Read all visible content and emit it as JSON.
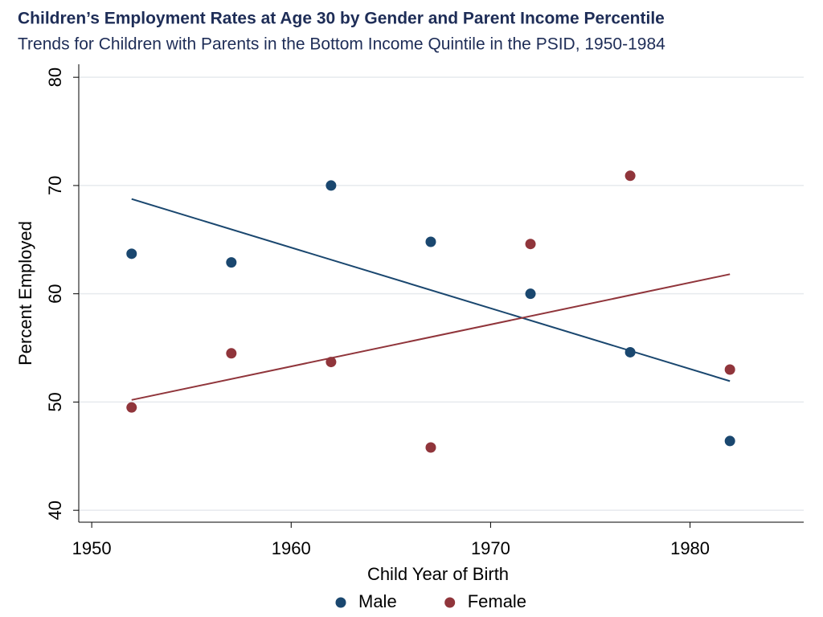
{
  "chart_data": {
    "type": "scatter",
    "title": "Children’s Employment Rates at Age 30 by Gender and Parent Income Percentile",
    "subtitle": "Trends for Children with Parents in the Bottom Income Quintile in the PSID, 1950-1984",
    "x_label": "Child Year of Birth",
    "y_label": "Percent Employed",
    "x": [
      1952,
      1957,
      1962,
      1967,
      1972,
      1977,
      1982
    ],
    "series": [
      {
        "name": "Male",
        "color": "#1a476f",
        "values": [
          63.7,
          62.9,
          70.0,
          64.8,
          60.0,
          54.6,
          46.4
        ]
      },
      {
        "name": "Female",
        "color": "#90353b",
        "values": [
          49.5,
          54.5,
          53.7,
          45.8,
          64.6,
          70.9,
          53.0
        ]
      }
    ],
    "fit": "linear",
    "xlim": [
      1949.35,
      1985.7
    ],
    "xticks": [
      1950,
      1960,
      1970,
      1980
    ],
    "ylim": [
      38.9,
      81.2
    ],
    "yticks": [
      40,
      50,
      60,
      70,
      80
    ],
    "grid": true,
    "legend": "bottom"
  }
}
